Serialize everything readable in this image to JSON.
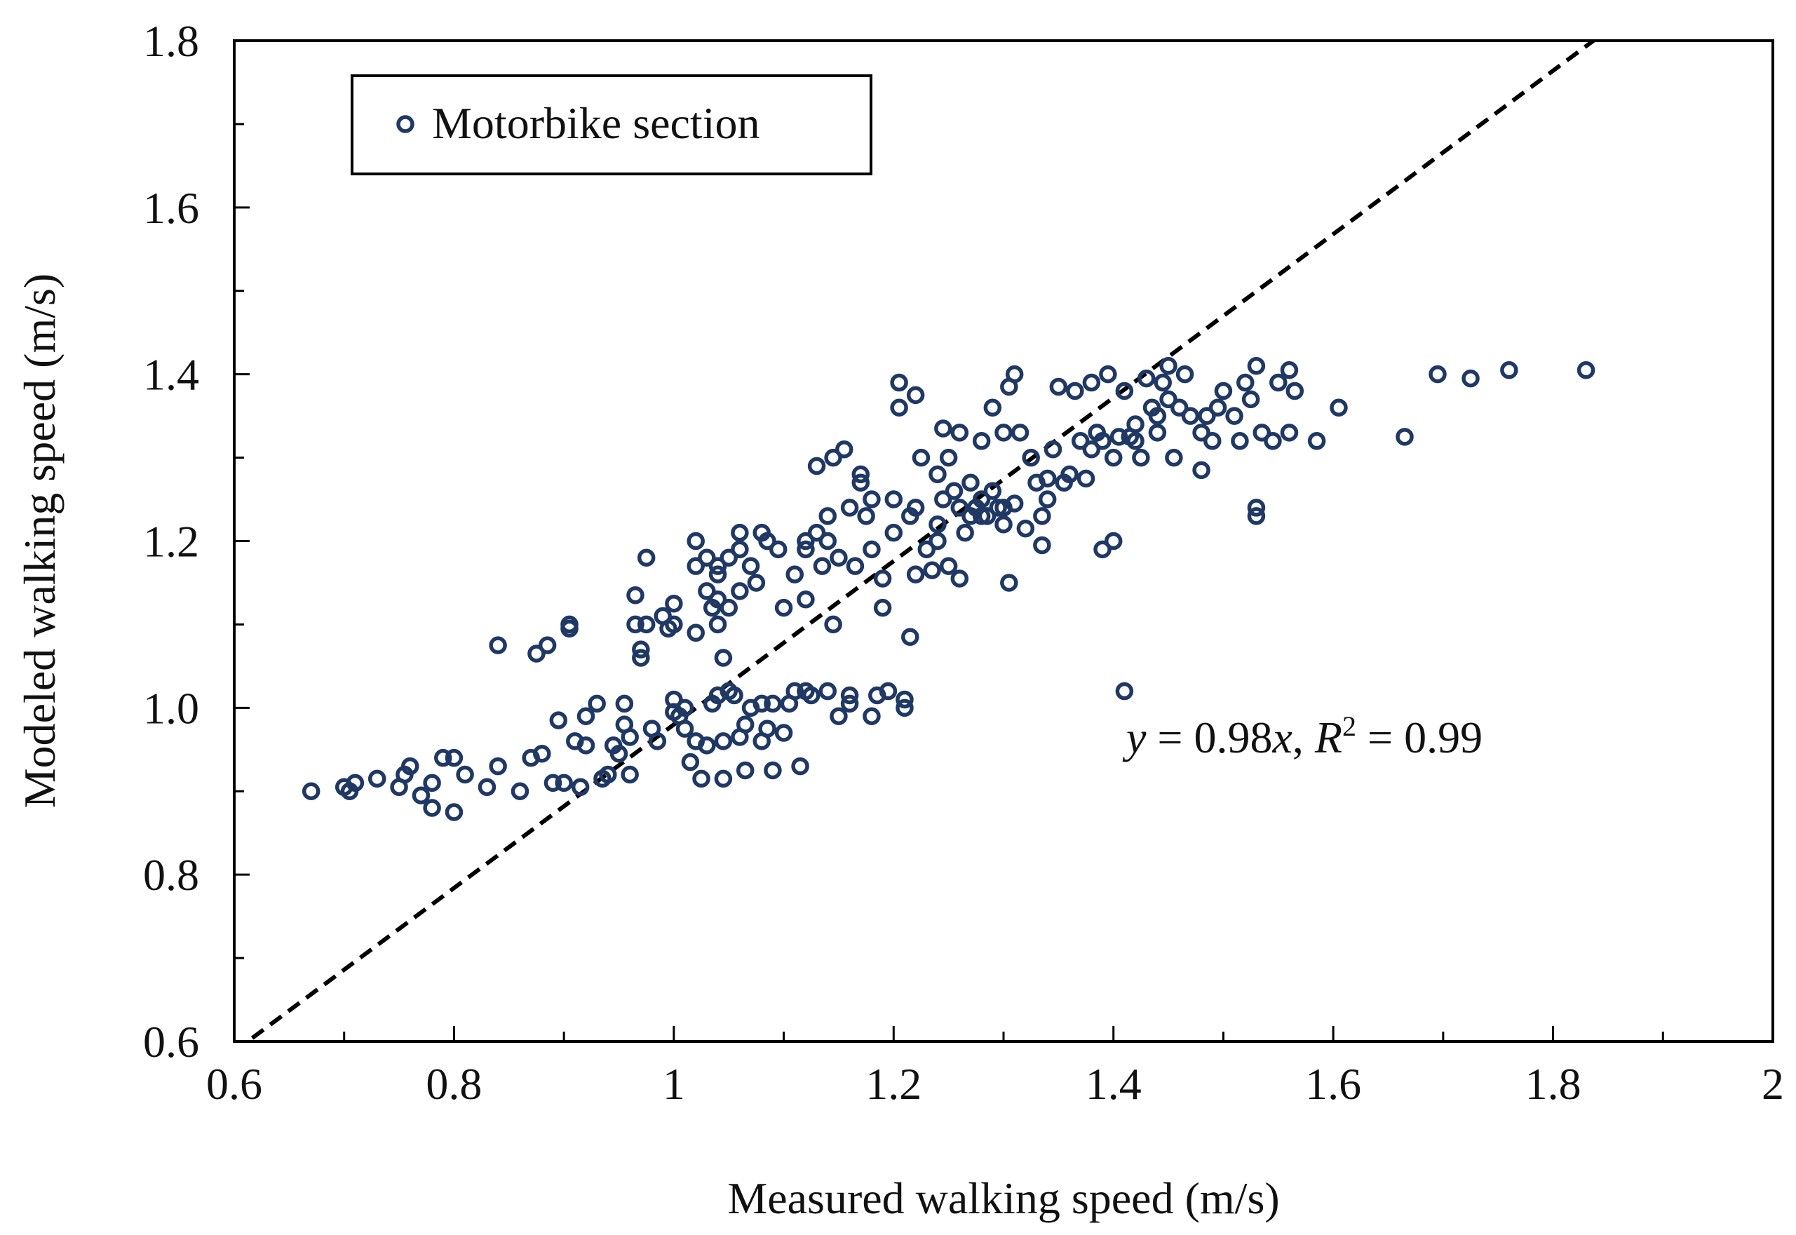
{
  "chart_data": {
    "type": "scatter",
    "xlabel": "Measured walking speed (m/s)",
    "ylabel": "Modeled walking speed (m/s)",
    "xlim": [
      0.6,
      2.0
    ],
    "ylim": [
      0.6,
      1.8
    ],
    "x_ticks": [
      "0.6",
      "0.8",
      "1",
      "1.2",
      "1.4",
      "1.6",
      "1.8",
      "2"
    ],
    "y_ticks": [
      "0.6",
      "0.8",
      "1.0",
      "1.2",
      "1.4",
      "1.6",
      "1.8"
    ],
    "grid": false,
    "legend": {
      "placement": "top-left",
      "entries": [
        "Motorbike section"
      ]
    },
    "colors": {
      "marker": "#1f3864",
      "line": "#000000"
    },
    "reference_line": {
      "slope": 0.98,
      "intercept": 0,
      "style": "dashed"
    },
    "annotation": {
      "y_var": "y",
      "equals": " = 0.98",
      "x_var": "x",
      "sep": ", ",
      "r_var": "R",
      "r_sup": "2",
      "r_value": " = 0.99"
    },
    "series": [
      {
        "name": "Motorbike section",
        "marker": "open-circle",
        "points": [
          [
            0.67,
            0.9
          ],
          [
            0.7,
            0.905
          ],
          [
            0.705,
            0.9
          ],
          [
            0.71,
            0.91
          ],
          [
            0.73,
            0.915
          ],
          [
            0.75,
            0.905
          ],
          [
            0.76,
            0.93
          ],
          [
            0.755,
            0.92
          ],
          [
            0.77,
            0.895
          ],
          [
            0.78,
            0.91
          ],
          [
            0.78,
            0.88
          ],
          [
            0.79,
            0.94
          ],
          [
            0.8,
            0.94
          ],
          [
            0.8,
            0.875
          ],
          [
            0.81,
            0.92
          ],
          [
            0.83,
            0.905
          ],
          [
            0.84,
            1.075
          ],
          [
            0.84,
            0.93
          ],
          [
            0.86,
            0.9
          ],
          [
            0.87,
            0.94
          ],
          [
            0.875,
            1.065
          ],
          [
            0.88,
            0.945
          ],
          [
            0.885,
            1.075
          ],
          [
            0.89,
            0.91
          ],
          [
            0.895,
            0.985
          ],
          [
            0.9,
            0.91
          ],
          [
            0.905,
            1.1
          ],
          [
            0.905,
            1.095
          ],
          [
            0.91,
            0.96
          ],
          [
            0.915,
            0.905
          ],
          [
            0.92,
            0.955
          ],
          [
            0.92,
            0.99
          ],
          [
            0.93,
            1.005
          ],
          [
            0.935,
            0.915
          ],
          [
            0.94,
            0.92
          ],
          [
            0.945,
            0.955
          ],
          [
            0.95,
            0.945
          ],
          [
            0.955,
            1.005
          ],
          [
            0.955,
            0.98
          ],
          [
            0.96,
            0.965
          ],
          [
            0.96,
            0.92
          ],
          [
            0.965,
            1.1
          ],
          [
            0.965,
            1.135
          ],
          [
            0.97,
            1.07
          ],
          [
            0.97,
            1.06
          ],
          [
            0.975,
            1.18
          ],
          [
            0.975,
            1.1
          ],
          [
            0.98,
            0.975
          ],
          [
            0.985,
            0.96
          ],
          [
            0.99,
            1.11
          ],
          [
            0.995,
            1.095
          ],
          [
            1.0,
            1.1
          ],
          [
            1.0,
            1.125
          ],
          [
            1.0,
            1.01
          ],
          [
            1.005,
            0.99
          ],
          [
            1.01,
            1.0
          ],
          [
            1.01,
            0.975
          ],
          [
            1.015,
            0.935
          ],
          [
            1.02,
            1.09
          ],
          [
            1.02,
            1.2
          ],
          [
            1.02,
            1.17
          ],
          [
            1.025,
            0.915
          ],
          [
            1.03,
            1.18
          ],
          [
            1.03,
            1.14
          ],
          [
            1.03,
            0.955
          ],
          [
            1.035,
            1.12
          ],
          [
            1.035,
            1.005
          ],
          [
            1.04,
            1.16
          ],
          [
            1.04,
            1.13
          ],
          [
            1.04,
            1.1
          ],
          [
            1.045,
            0.96
          ],
          [
            1.045,
            1.06
          ],
          [
            1.045,
            0.915
          ],
          [
            1.05,
            1.02
          ],
          [
            1.05,
            1.18
          ],
          [
            1.05,
            1.12
          ],
          [
            1.055,
            1.015
          ],
          [
            1.06,
            1.14
          ],
          [
            1.06,
            1.21
          ],
          [
            1.065,
            0.98
          ],
          [
            1.065,
            0.925
          ],
          [
            1.07,
            1.17
          ],
          [
            1.07,
            1.0
          ],
          [
            1.075,
            1.15
          ],
          [
            1.08,
            0.96
          ],
          [
            1.08,
            1.21
          ],
          [
            1.085,
            0.975
          ],
          [
            1.085,
            1.2
          ],
          [
            1.09,
            1.005
          ],
          [
            1.09,
            0.925
          ],
          [
            1.095,
            1.19
          ],
          [
            1.1,
            0.97
          ],
          [
            1.1,
            1.12
          ],
          [
            1.105,
            1.005
          ],
          [
            1.11,
            1.16
          ],
          [
            1.11,
            1.02
          ],
          [
            1.115,
            0.93
          ],
          [
            1.12,
            1.2
          ],
          [
            1.12,
            1.13
          ],
          [
            1.125,
            1.015
          ],
          [
            1.13,
            1.21
          ],
          [
            1.13,
            1.29
          ],
          [
            1.135,
            1.17
          ],
          [
            1.14,
            1.23
          ],
          [
            1.14,
            1.02
          ],
          [
            1.145,
            1.1
          ],
          [
            1.145,
            1.3
          ],
          [
            1.15,
            1.18
          ],
          [
            1.15,
            0.99
          ],
          [
            1.155,
            1.31
          ],
          [
            1.16,
            1.24
          ],
          [
            1.16,
            1.015
          ],
          [
            1.165,
            1.17
          ],
          [
            1.17,
            1.28
          ],
          [
            1.17,
            1.27
          ],
          [
            1.175,
            1.23
          ],
          [
            1.18,
            1.25
          ],
          [
            1.18,
            1.19
          ],
          [
            1.18,
            0.99
          ],
          [
            1.185,
            1.015
          ],
          [
            1.19,
            1.12
          ],
          [
            1.19,
            1.155
          ],
          [
            1.195,
            1.02
          ],
          [
            1.2,
            1.21
          ],
          [
            1.2,
            1.25
          ],
          [
            1.205,
            1.36
          ],
          [
            1.205,
            1.39
          ],
          [
            1.21,
            1.01
          ],
          [
            1.21,
            1.0
          ],
          [
            1.215,
            1.085
          ],
          [
            1.215,
            1.23
          ],
          [
            1.22,
            1.24
          ],
          [
            1.22,
            1.375
          ],
          [
            1.225,
            1.3
          ],
          [
            1.23,
            1.19
          ],
          [
            1.235,
            1.165
          ],
          [
            1.24,
            1.28
          ],
          [
            1.24,
            1.22
          ],
          [
            1.245,
            1.25
          ],
          [
            1.245,
            1.335
          ],
          [
            1.25,
            1.3
          ],
          [
            1.25,
            1.17
          ],
          [
            1.255,
            1.26
          ],
          [
            1.26,
            1.33
          ],
          [
            1.26,
            1.155
          ],
          [
            1.265,
            1.21
          ],
          [
            1.27,
            1.27
          ],
          [
            1.27,
            1.23
          ],
          [
            1.275,
            1.24
          ],
          [
            1.28,
            1.25
          ],
          [
            1.28,
            1.32
          ],
          [
            1.285,
            1.23
          ],
          [
            1.29,
            1.36
          ],
          [
            1.29,
            1.26
          ],
          [
            1.295,
            1.24
          ],
          [
            1.3,
            1.22
          ],
          [
            1.3,
            1.33
          ],
          [
            1.305,
            1.15
          ],
          [
            1.305,
            1.385
          ],
          [
            1.31,
            1.4
          ],
          [
            1.31,
            1.245
          ],
          [
            1.315,
            1.33
          ],
          [
            1.32,
            1.215
          ],
          [
            1.325,
            1.3
          ],
          [
            1.33,
            1.27
          ],
          [
            1.335,
            1.195
          ],
          [
            1.335,
            1.23
          ],
          [
            1.34,
            1.25
          ],
          [
            1.345,
            1.31
          ],
          [
            1.35,
            1.385
          ],
          [
            1.355,
            1.27
          ],
          [
            1.36,
            1.28
          ],
          [
            1.365,
            1.38
          ],
          [
            1.37,
            1.32
          ],
          [
            1.375,
            1.275
          ],
          [
            1.38,
            1.39
          ],
          [
            1.385,
            1.33
          ],
          [
            1.39,
            1.19
          ],
          [
            1.39,
            1.32
          ],
          [
            1.395,
            1.4
          ],
          [
            1.4,
            1.3
          ],
          [
            1.4,
            1.2
          ],
          [
            1.405,
            1.325
          ],
          [
            1.41,
            1.02
          ],
          [
            1.41,
            1.38
          ],
          [
            1.415,
            1.325
          ],
          [
            1.42,
            1.34
          ],
          [
            1.425,
            1.3
          ],
          [
            1.43,
            1.395
          ],
          [
            1.435,
            1.36
          ],
          [
            1.44,
            1.33
          ],
          [
            1.445,
            1.39
          ],
          [
            1.45,
            1.41
          ],
          [
            1.45,
            1.37
          ],
          [
            1.455,
            1.3
          ],
          [
            1.46,
            1.36
          ],
          [
            1.465,
            1.4
          ],
          [
            1.47,
            1.35
          ],
          [
            1.48,
            1.33
          ],
          [
            1.48,
            1.285
          ],
          [
            1.485,
            1.35
          ],
          [
            1.49,
            1.32
          ],
          [
            1.495,
            1.36
          ],
          [
            1.5,
            1.38
          ],
          [
            1.51,
            1.35
          ],
          [
            1.515,
            1.32
          ],
          [
            1.52,
            1.39
          ],
          [
            1.525,
            1.37
          ],
          [
            1.53,
            1.41
          ],
          [
            1.53,
            1.24
          ],
          [
            1.53,
            1.23
          ],
          [
            1.535,
            1.33
          ],
          [
            1.545,
            1.32
          ],
          [
            1.55,
            1.39
          ],
          [
            1.56,
            1.405
          ],
          [
            1.56,
            1.33
          ],
          [
            1.565,
            1.38
          ],
          [
            1.585,
            1.32
          ],
          [
            1.605,
            1.36
          ],
          [
            1.665,
            1.325
          ],
          [
            1.695,
            1.4
          ],
          [
            1.725,
            1.395
          ],
          [
            1.76,
            1.405
          ],
          [
            1.83,
            1.405
          ],
          [
            1.0,
            0.995
          ],
          [
            1.02,
            0.96
          ],
          [
            1.04,
            1.015
          ],
          [
            1.06,
            0.965
          ],
          [
            1.08,
            1.005
          ],
          [
            1.12,
            1.02
          ],
          [
            1.16,
            1.005
          ],
          [
            1.26,
            1.24
          ],
          [
            1.28,
            1.23
          ],
          [
            1.3,
            1.24
          ],
          [
            1.12,
            1.19
          ],
          [
            1.14,
            1.2
          ],
          [
            1.06,
            1.19
          ],
          [
            1.04,
            1.17
          ],
          [
            1.42,
            1.32
          ],
          [
            1.44,
            1.35
          ],
          [
            1.38,
            1.31
          ],
          [
            1.34,
            1.275
          ],
          [
            1.22,
            1.16
          ],
          [
            1.24,
            1.2
          ]
        ]
      }
    ]
  }
}
